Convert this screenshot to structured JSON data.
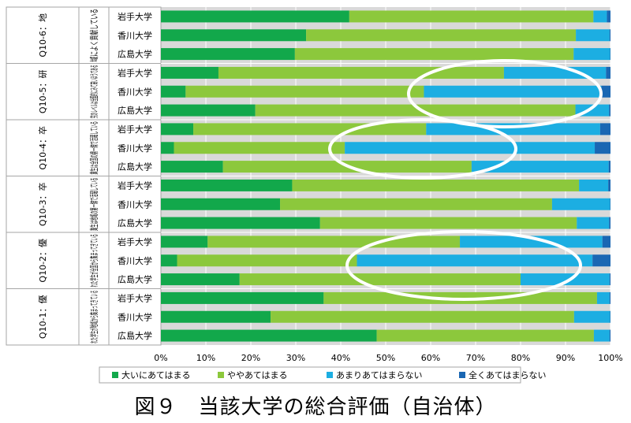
{
  "figure_caption": "図９　当該大学の総合評価（自治体）",
  "chart_data": {
    "type": "bar",
    "orientation": "horizontal",
    "stacked": "percent",
    "xlim": [
      0,
      100
    ],
    "xticks": [
      "0%",
      "10%",
      "20%",
      "30%",
      "40%",
      "50%",
      "60%",
      "70%",
      "80%",
      "90%",
      "100%"
    ],
    "grid": true,
    "legend_position": "bottom",
    "series": [
      {
        "name": "大いにあてはまる",
        "color": "#12a84b"
      },
      {
        "name": "ややあてはまる",
        "color": "#8cc83c"
      },
      {
        "name": "あまりあてはまらない",
        "color": "#1caee2"
      },
      {
        "name": "全くあてはまらない",
        "color": "#1a67b3"
      }
    ],
    "groups": [
      {
        "label_col1": "Q10-6：地",
        "label_col2": "域によく貢献している",
        "bars": [
          {
            "name": "岩手大学",
            "values": [
              41.9,
              54.3,
              3.0,
              0.8
            ]
          },
          {
            "name": "香川大学",
            "values": [
              32.3,
              60.0,
              7.5,
              0.2
            ]
          },
          {
            "name": "広島大学",
            "values": [
              29.8,
              62.0,
              8.1,
              0.1
            ]
          }
        ]
      },
      {
        "label_col1": "Q10-5：研",
        "label_col2": "究のレベルは全国的にみて高いほうである",
        "bars": [
          {
            "name": "岩手大学",
            "values": [
              12.8,
              63.5,
              22.7,
              1.0
            ]
          },
          {
            "name": "香川大学",
            "values": [
              5.5,
              53.0,
              39.5,
              2.0
            ]
          },
          {
            "name": "広島大学",
            "values": [
              21.0,
              71.2,
              7.5,
              0.3
            ]
          }
        ]
      },
      {
        "label_col1": "Q10-4：卒",
        "label_col2": "業生は全国の第一線で活躍している",
        "bars": [
          {
            "name": "岩手大学",
            "values": [
              7.2,
              51.8,
              38.7,
              2.3
            ]
          },
          {
            "name": "香川大学",
            "values": [
              2.9,
              38.0,
              55.6,
              3.5
            ]
          },
          {
            "name": "広島大学",
            "values": [
              13.8,
              55.3,
              30.5,
              0.4
            ]
          }
        ]
      },
      {
        "label_col1": "Q10-3：卒",
        "label_col2": "業生は地域の第一線で活躍している",
        "bars": [
          {
            "name": "岩手大学",
            "values": [
              29.2,
              63.8,
              6.5,
              0.5
            ]
          },
          {
            "name": "香川大学",
            "values": [
              26.5,
              60.5,
              12.9,
              0.1
            ]
          },
          {
            "name": "広島大学",
            "values": [
              35.4,
              57.1,
              7.2,
              0.3
            ]
          }
        ]
      },
      {
        "label_col1": "Q10-2：優",
        "label_col2": "れた学生が全国から集まってきている",
        "bars": [
          {
            "name": "岩手大学",
            "values": [
              10.4,
              56.1,
              31.7,
              1.8
            ]
          },
          {
            "name": "香川大学",
            "values": [
              3.6,
              40.0,
              52.4,
              4.0
            ]
          },
          {
            "name": "広島大学",
            "values": [
              17.5,
              62.5,
              19.8,
              0.2
            ]
          }
        ]
      },
      {
        "label_col1": "Q10-1：優",
        "label_col2": "れた学生が地域から集まってきている",
        "bars": [
          {
            "name": "岩手大学",
            "values": [
              36.2,
              60.8,
              2.8,
              0.2
            ]
          },
          {
            "name": "香川大学",
            "values": [
              24.4,
              67.5,
              8.0,
              0.1
            ]
          },
          {
            "name": "広島大学",
            "values": [
              48.0,
              48.3,
              3.5,
              0.2
            ]
          }
        ]
      }
    ]
  }
}
